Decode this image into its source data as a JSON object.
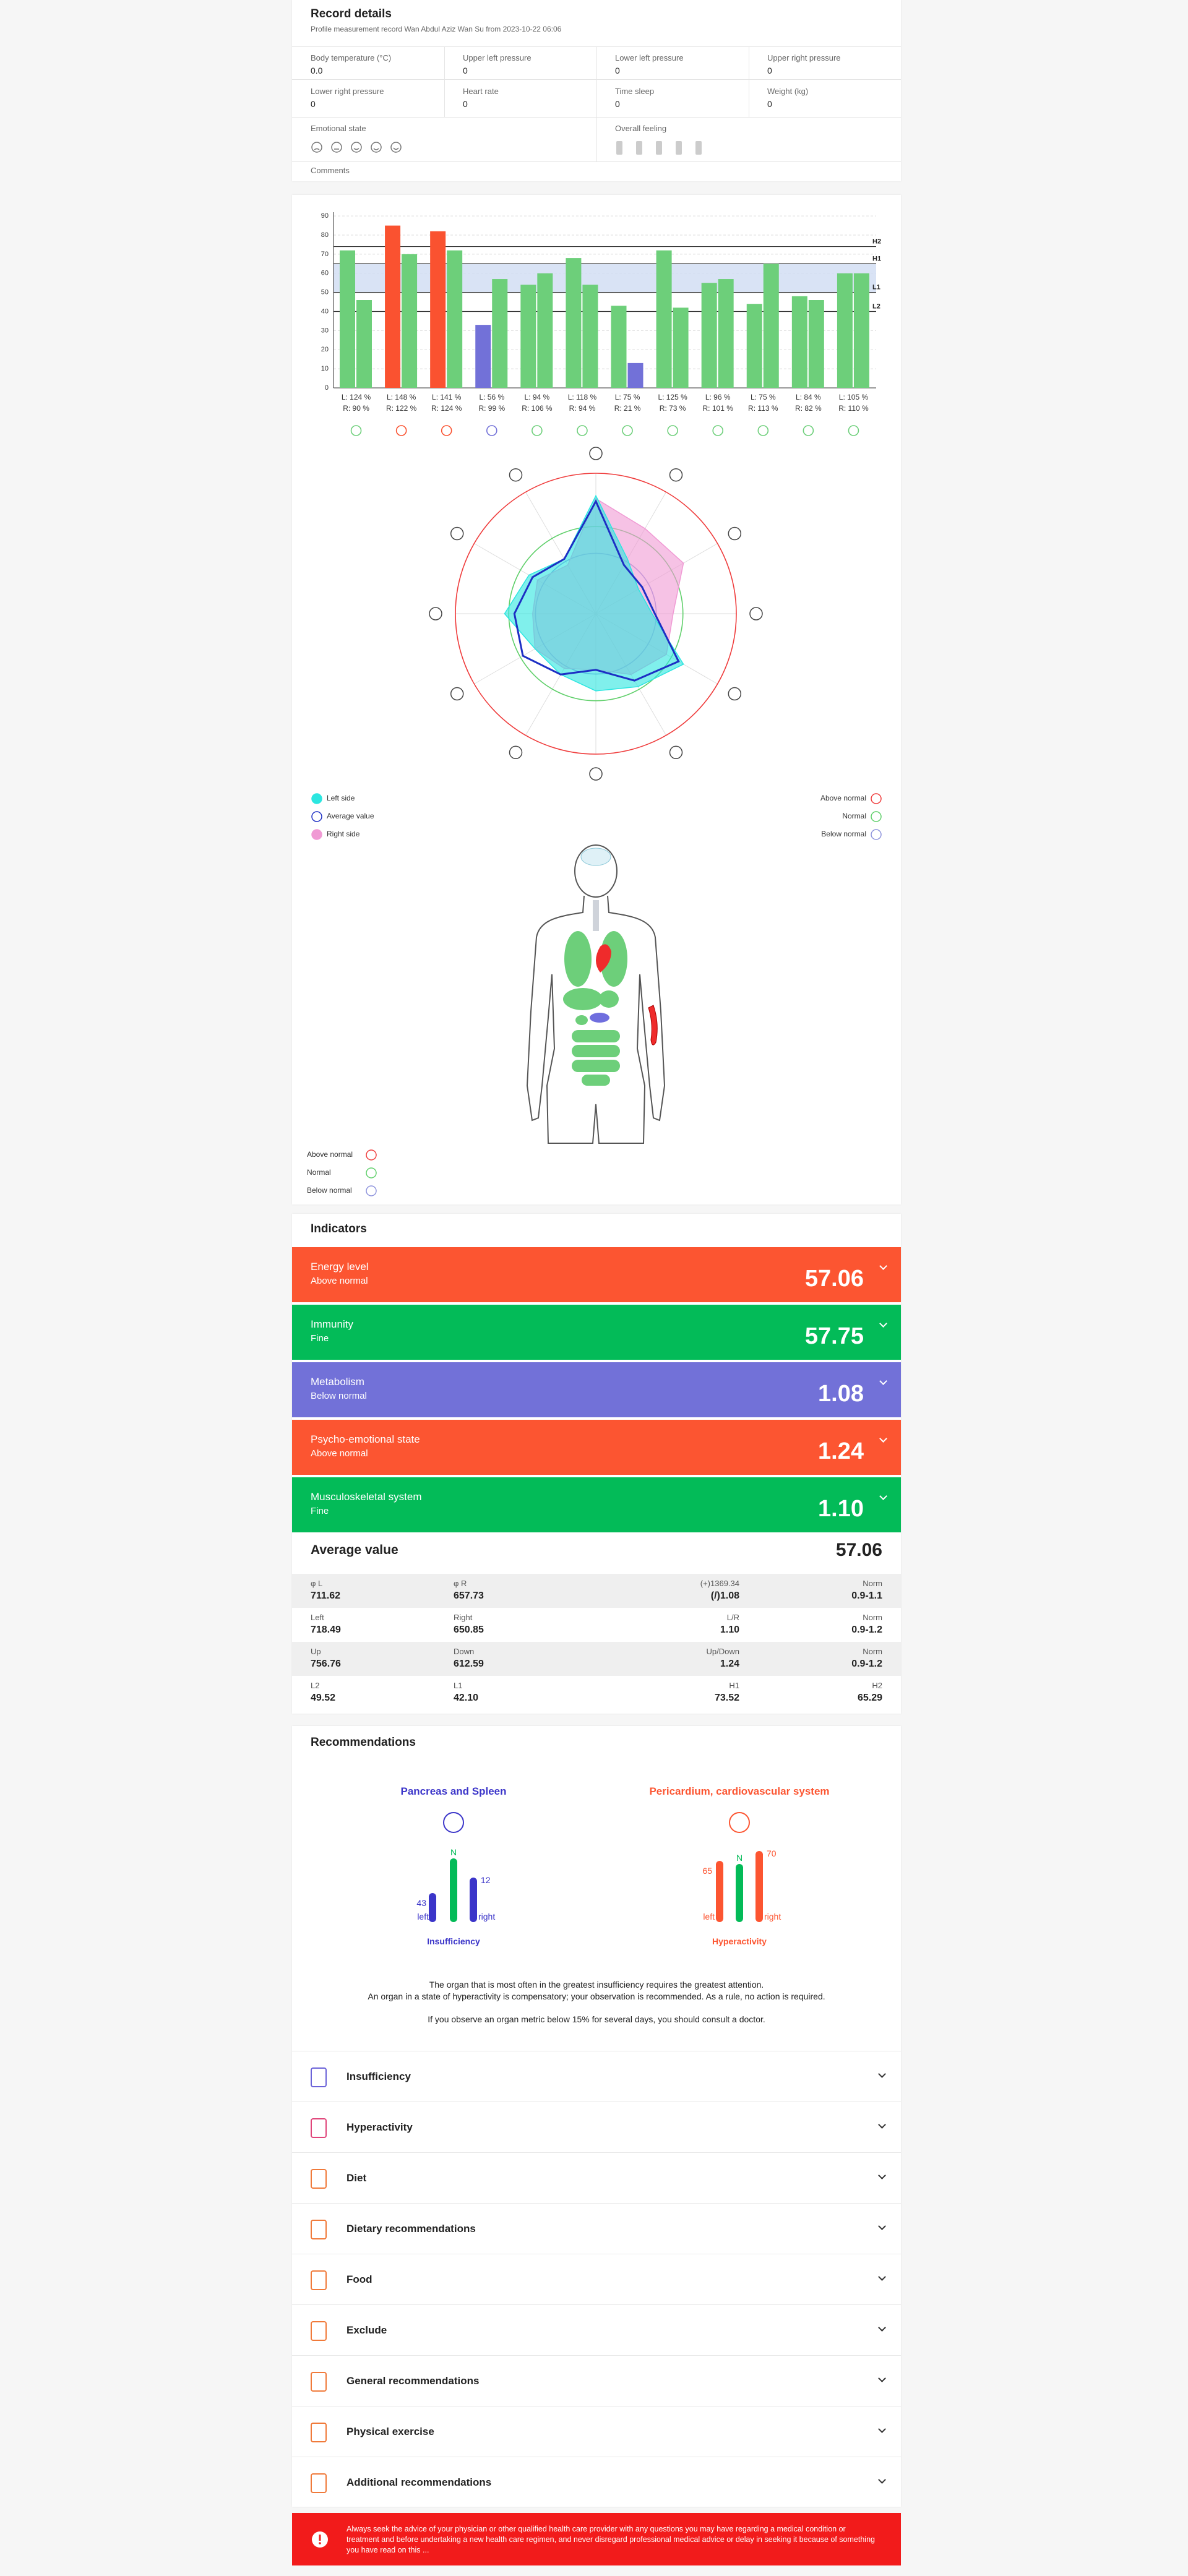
{
  "record": {
    "title": "Record details",
    "subtitle": "Profile measurement record Wan Abdul Aziz Wan Su from 2023-10-22 06:06",
    "fields": [
      {
        "label": "Body temperature (°C)",
        "value": "0.0"
      },
      {
        "label": "Upper left pressure",
        "value": "0"
      },
      {
        "label": "Lower left pressure",
        "value": "0"
      },
      {
        "label": "Upper right pressure",
        "value": "0"
      },
      {
        "label": "Lower right pressure",
        "value": "0"
      },
      {
        "label": "Heart rate",
        "value": "0"
      },
      {
        "label": "Time sleep",
        "value": "0"
      },
      {
        "label": "Weight (kg)",
        "value": "0"
      }
    ],
    "emotional_state": "Emotional state",
    "overall_feeling": "Overall feeling",
    "comments": "Comments"
  },
  "chart_data": [
    {
      "type": "bar",
      "ylim": [
        0,
        92
      ],
      "yticks": [
        0,
        10,
        20,
        30,
        40,
        50,
        60,
        70,
        80,
        90
      ],
      "grid": true,
      "left_labels": [
        "L: 124 %",
        "L: 148 %",
        "L: 141 %",
        "L: 56 %",
        "L: 94 %",
        "L: 118 %",
        "L: 75 %",
        "L: 125 %",
        "L: 96 %",
        "L: 75 %",
        "L: 84 %",
        "L: 105 %"
      ],
      "right_labels": [
        "R: 90 %",
        "R: 122 %",
        "R: 124 %",
        "R: 99 %",
        "R: 106 %",
        "R: 94 %",
        "R: 21 %",
        "R: 73 %",
        "R: 101 %",
        "R: 113 %",
        "R: 82 %",
        "R: 110 %"
      ],
      "series": [
        {
          "values": [
            72,
            85,
            82,
            33,
            54,
            68,
            43,
            72,
            55,
            44,
            48,
            60
          ],
          "colors": [
            "#6dcf7a",
            "#fa5230",
            "#fa5230",
            "#7271d8",
            "#6dcf7a",
            "#6dcf7a",
            "#6dcf7a",
            "#6dcf7a",
            "#6dcf7a",
            "#6dcf7a",
            "#6dcf7a",
            "#6dcf7a"
          ]
        },
        {
          "values": [
            46,
            70,
            72,
            57,
            60,
            54,
            13,
            42,
            57,
            65,
            46,
            60
          ],
          "colors": [
            "#6dcf7a",
            "#6dcf7a",
            "#6dcf7a",
            "#6dcf7a",
            "#6dcf7a",
            "#6dcf7a",
            "#7271d8",
            "#6dcf7a",
            "#6dcf7a",
            "#6dcf7a",
            "#6dcf7a",
            "#6dcf7a"
          ]
        }
      ],
      "ref_lines": [
        {
          "label": "H2",
          "value": 74
        },
        {
          "label": "H1",
          "value": 65
        },
        {
          "label": "L1",
          "value": 50
        },
        {
          "label": "L2",
          "value": 40
        }
      ],
      "band_color": "#cfdcf3"
    },
    {
      "type": "radar",
      "categories": [
        null,
        null,
        null,
        null,
        null,
        null,
        null,
        null,
        null,
        null,
        null,
        null
      ],
      "rlim": [
        0,
        100
      ],
      "series": [
        {
          "name": "Right side",
          "color": "#f09ad4",
          "style": "area",
          "values": [
            82,
            70,
            72,
            55,
            58,
            50,
            40,
            45,
            50,
            45,
            48,
            40
          ]
        },
        {
          "name": "Left side",
          "color": "#2be6e0",
          "style": "area",
          "values": [
            84,
            45,
            35,
            40,
            72,
            60,
            55,
            50,
            50,
            65,
            55,
            45
          ]
        },
        {
          "name": "Average value",
          "color": "#1d2fc4",
          "style": "line",
          "values": [
            80,
            40,
            38,
            42,
            68,
            55,
            40,
            50,
            60,
            58,
            52,
            45
          ]
        }
      ],
      "rings": [
        {
          "label": "Above normal",
          "color": "#ef3b3b",
          "value": 100
        },
        {
          "label": "Normal",
          "color": "#5fcf6a",
          "value": 62
        },
        {
          "label": "Below normal",
          "color": "#8e93dc",
          "value": 43
        }
      ]
    }
  ],
  "body": {
    "legend": [
      {
        "label": "Above normal",
        "color": "#ef3b3b"
      },
      {
        "label": "Normal",
        "color": "#5fcf6a"
      },
      {
        "label": "Below normal",
        "color": "#8e93dc"
      }
    ]
  },
  "indicators": {
    "title": "Indicators",
    "items": [
      {
        "name": "Energy level",
        "status": "Above normal",
        "value": "57.06",
        "color": "#fc5531"
      },
      {
        "name": "Immunity",
        "status": "Fine",
        "value": "57.75",
        "color": "#03bb58"
      },
      {
        "name": "Metabolism",
        "status": "Below normal",
        "value": "1.08",
        "color": "#7271d8"
      },
      {
        "name": "Psycho-emotional state",
        "status": "Above normal",
        "value": "1.24",
        "color": "#fc5531"
      },
      {
        "name": "Musculoskeletal system",
        "status": "Fine",
        "value": "1.10",
        "color": "#03bb58"
      }
    ]
  },
  "average": {
    "label": "Average value",
    "value": "57.06",
    "table": [
      [
        {
          "label": "φ L",
          "value": "711.62"
        },
        {
          "label": "φ R",
          "value": "657.73"
        },
        {
          "label": "(+)1369.34",
          "value": "(/)1.08"
        },
        {
          "label": "Norm",
          "value": "0.9-1.1"
        }
      ],
      [
        {
          "label": "Left",
          "value": "718.49"
        },
        {
          "label": "Right",
          "value": "650.85"
        },
        {
          "label": "L/R",
          "value": "1.10"
        },
        {
          "label": "Norm",
          "value": "0.9-1.2"
        }
      ],
      [
        {
          "label": "Up",
          "value": "756.76"
        },
        {
          "label": "Down",
          "value": "612.59"
        },
        {
          "label": "Up/Down",
          "value": "1.24"
        },
        {
          "label": "Norm",
          "value": "0.9-1.2"
        }
      ],
      [
        {
          "label": "L2",
          "value": "49.52"
        },
        {
          "label": "L1",
          "value": "42.10"
        },
        {
          "label": "H1",
          "value": "73.52"
        },
        {
          "label": "H2",
          "value": "65.29"
        }
      ]
    ]
  },
  "recommendations": {
    "title": "Recommendations",
    "organs": [
      {
        "name": "Pancreas and Spleen",
        "color": "#3b35c9",
        "left": "43",
        "n": "N",
        "right": "12",
        "left_label": "left",
        "right_label": "right",
        "state": "Insufficiency"
      },
      {
        "name": "Pericardium, cardiovascular system",
        "color": "#fc5531",
        "left": "65",
        "n": "N",
        "right": "70",
        "left_label": "left",
        "right_label": "right",
        "state": "Hyperactivity"
      }
    ],
    "notes": [
      "The organ that is most often in the greatest insufficiency requires the greatest attention.",
      "An organ in a state of hyperactivity is compensatory; your observation is recommended. As a rule, no action is required.",
      "If you observe an organ metric below 15% for several days, you should consult a doctor."
    ],
    "sections": [
      "Insufficiency",
      "Hyperactivity",
      "Diet",
      "Dietary recommendations",
      "Food",
      "Exclude",
      "General recommendations",
      "Physical exercise",
      "Additional recommendations"
    ]
  },
  "disclaimer": "Always seek the advice of your physician or other qualified health care provider with any questions you may have regarding a medical condition or treatment and before undertaking a new health care regimen, and never disregard professional medical advice or delay in seeking it because of something you have read on this ..."
}
